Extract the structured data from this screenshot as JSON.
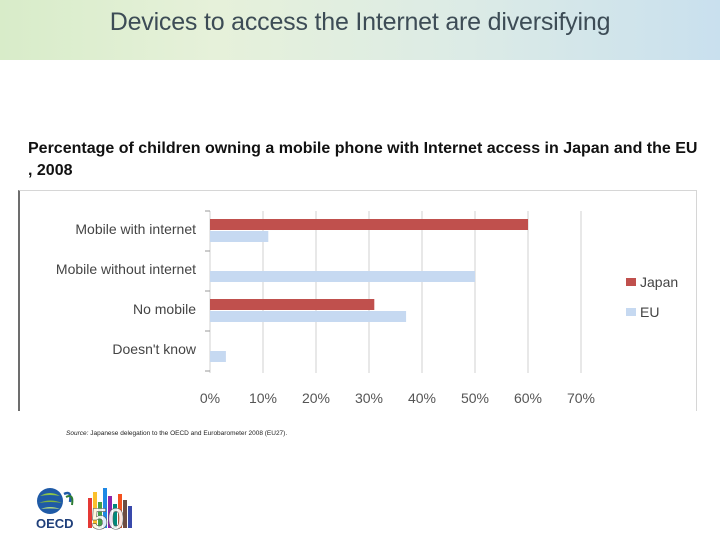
{
  "slide": {
    "title": "Devices to access the Internet are diversifying"
  },
  "chart_heading": "Percentage of children owning a mobile phone with Internet access in Japan and the EU , 2008",
  "source": {
    "label": "Source:",
    "text": "Japanese delegation to the OECD and Eurobarometer 2008 (EU27)."
  },
  "logo": {
    "oecd_text": "OECD",
    "anniversary": "50"
  },
  "chart_data": {
    "type": "bar",
    "orientation": "horizontal",
    "title": "Percentage of children owning a mobile phone with Internet access in Japan and the EU , 2008",
    "categories": [
      "Mobile with internet",
      "Mobile without internet",
      "No mobile",
      "Doesn't know"
    ],
    "series": [
      {
        "name": "Japan",
        "color": "#c0504d",
        "values": [
          60,
          null,
          31,
          null
        ]
      },
      {
        "name": "EU",
        "color": "#c6d9f1",
        "values": [
          11,
          50,
          37,
          3
        ]
      }
    ],
    "xlim": [
      0,
      70
    ],
    "xticks": [
      "0%",
      "10%",
      "20%",
      "30%",
      "40%",
      "50%",
      "60%",
      "70%"
    ],
    "xtick_values": [
      0,
      10,
      20,
      30,
      40,
      50,
      60,
      70
    ],
    "grid": true,
    "legend": "right"
  }
}
